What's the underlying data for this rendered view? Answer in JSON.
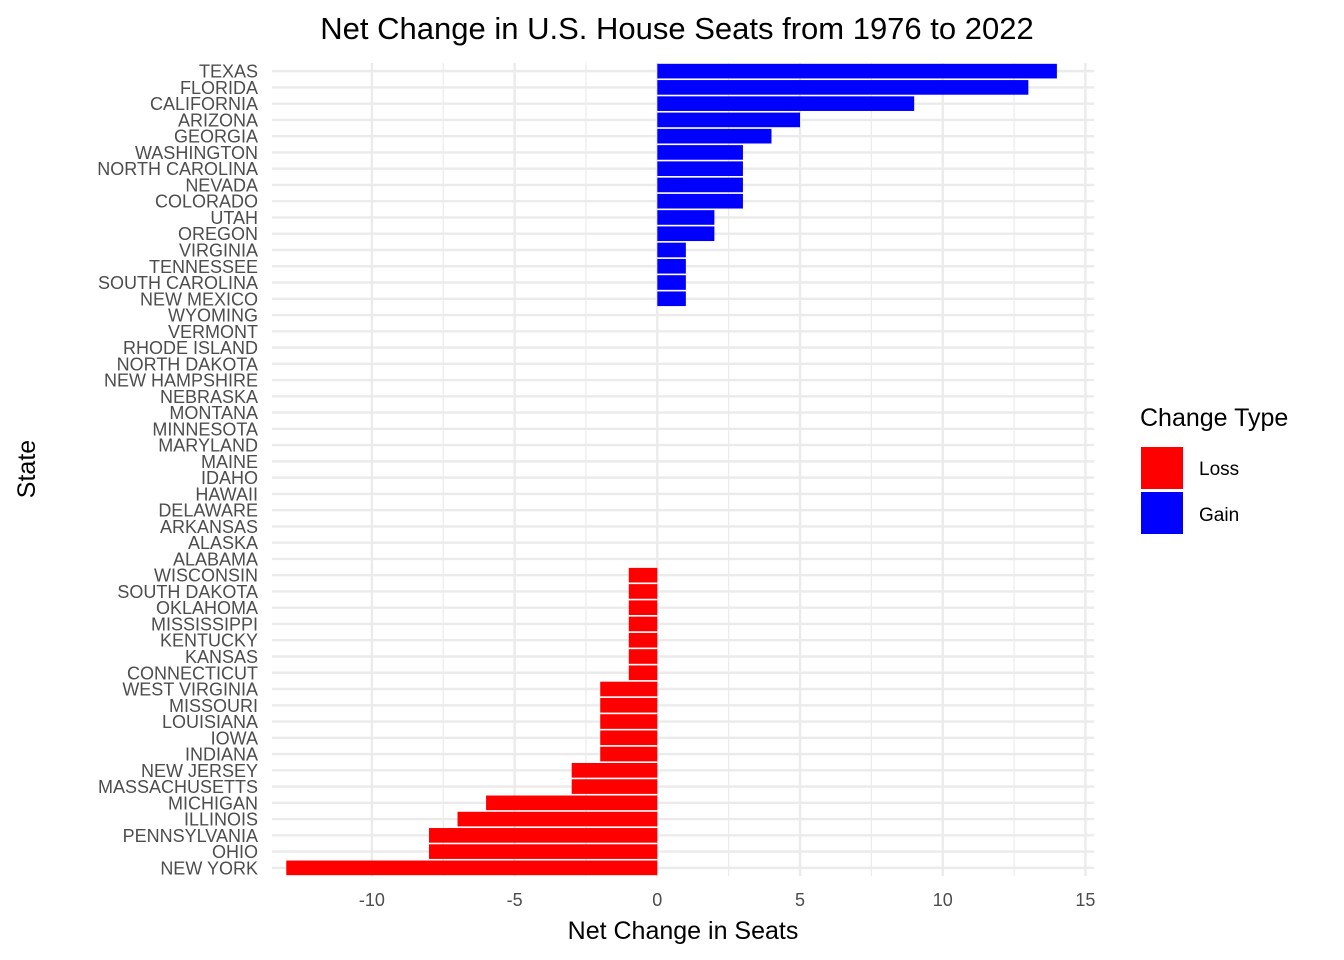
{
  "chart_data": {
    "type": "bar",
    "orientation": "horizontal",
    "title": "Net Change in U.S. House Seats from 1976 to 2022",
    "xlabel": "Net Change in Seats",
    "ylabel": "State",
    "xlim": [
      -13.5,
      15.3
    ],
    "xticks": [
      -10,
      -5,
      0,
      5,
      10,
      15
    ],
    "xtick_labels": [
      "-10",
      "-5",
      "0",
      "5",
      "10",
      "15"
    ],
    "grid": true,
    "legend": {
      "title": "Change Type",
      "placement": "right",
      "entries": [
        {
          "label": "Loss",
          "color": "#ff0000"
        },
        {
          "label": "Gain",
          "color": "#0000ff"
        }
      ]
    },
    "colors": {
      "loss": "#ff0000",
      "gain": "#0000ff",
      "grid": "#ebebeb"
    },
    "categories": [
      "TEXAS",
      "FLORIDA",
      "CALIFORNIA",
      "ARIZONA",
      "GEORGIA",
      "WASHINGTON",
      "NORTH CAROLINA",
      "NEVADA",
      "COLORADO",
      "UTAH",
      "OREGON",
      "VIRGINIA",
      "TENNESSEE",
      "SOUTH CAROLINA",
      "NEW MEXICO",
      "WYOMING",
      "VERMONT",
      "RHODE ISLAND",
      "NORTH DAKOTA",
      "NEW HAMPSHIRE",
      "NEBRASKA",
      "MONTANA",
      "MINNESOTA",
      "MARYLAND",
      "MAINE",
      "IDAHO",
      "HAWAII",
      "DELAWARE",
      "ARKANSAS",
      "ALASKA",
      "ALABAMA",
      "WISCONSIN",
      "SOUTH DAKOTA",
      "OKLAHOMA",
      "MISSISSIPPI",
      "KENTUCKY",
      "KANSAS",
      "CONNECTICUT",
      "WEST VIRGINIA",
      "MISSOURI",
      "LOUISIANA",
      "IOWA",
      "INDIANA",
      "NEW JERSEY",
      "MASSACHUSETTS",
      "MICHIGAN",
      "ILLINOIS",
      "PENNSYLVANIA",
      "OHIO",
      "NEW YORK"
    ],
    "values": [
      14,
      13,
      9,
      5,
      4,
      3,
      3,
      3,
      3,
      2,
      2,
      1,
      1,
      1,
      1,
      0,
      0,
      0,
      0,
      0,
      0,
      0,
      0,
      0,
      0,
      0,
      0,
      0,
      0,
      0,
      0,
      -1,
      -1,
      -1,
      -1,
      -1,
      -1,
      -1,
      -2,
      -2,
      -2,
      -2,
      -2,
      -3,
      -3,
      -6,
      -7,
      -8,
      -8,
      -13
    ]
  }
}
